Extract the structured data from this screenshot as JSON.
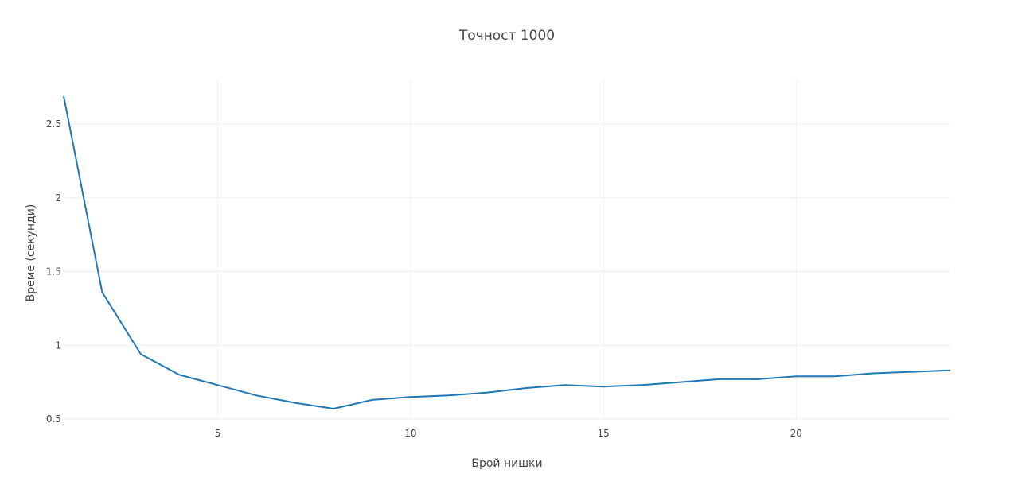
{
  "chart_data": {
    "type": "line",
    "title": "Точност 1000",
    "xlabel": "Брой нишки",
    "ylabel": "Време (секунди)",
    "xlim": [
      1,
      24
    ],
    "ylim": [
      0.5,
      2.7
    ],
    "xticks": [
      5,
      10,
      15,
      20
    ],
    "yticks": [
      0.5,
      1,
      1.5,
      2,
      2.5
    ],
    "grid": true,
    "series": [
      {
        "color": "#1f77b4",
        "x": [
          1,
          2,
          3,
          4,
          5,
          6,
          7,
          8,
          9,
          10,
          11,
          12,
          13,
          14,
          15,
          16,
          17,
          18,
          19,
          20,
          21,
          22,
          23,
          24
        ],
        "y": [
          2.69,
          1.36,
          0.94,
          0.8,
          0.73,
          0.66,
          0.61,
          0.57,
          0.63,
          0.65,
          0.66,
          0.68,
          0.71,
          0.73,
          0.72,
          0.73,
          0.75,
          0.77,
          0.77,
          0.79,
          0.79,
          0.81,
          0.82,
          0.83
        ]
      }
    ]
  }
}
